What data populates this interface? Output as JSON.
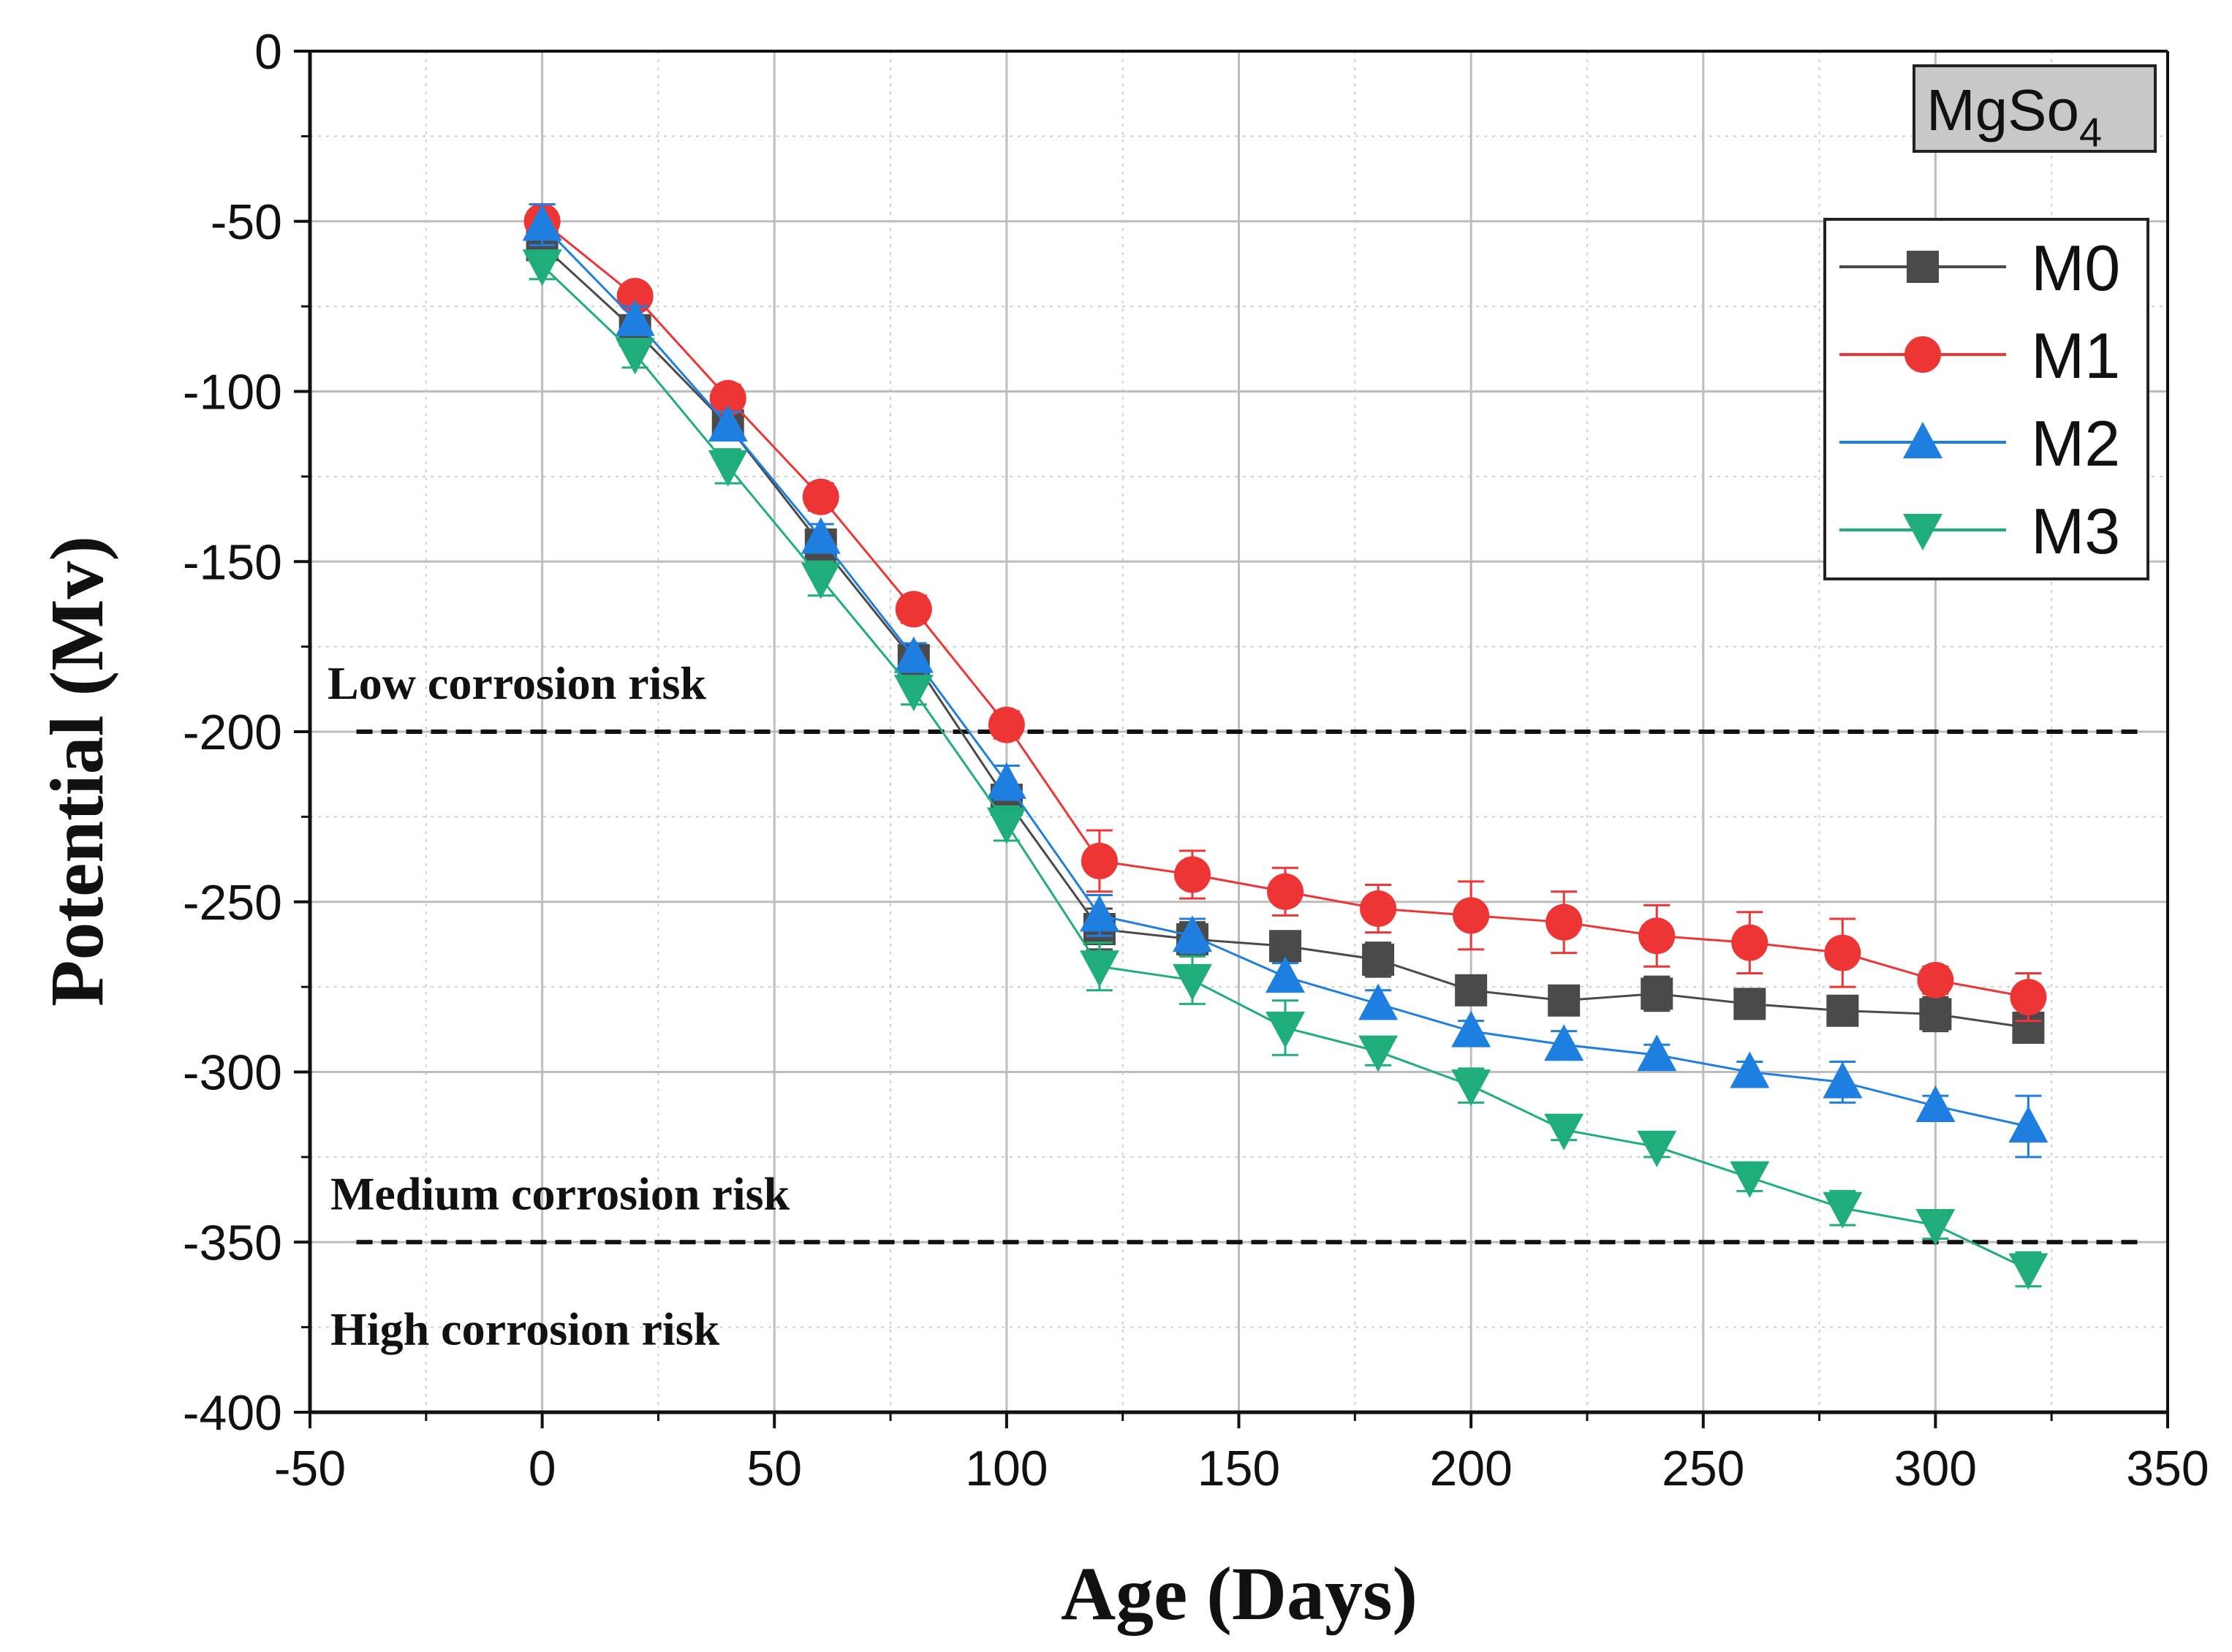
{
  "chart_data": {
    "type": "line",
    "title": "",
    "xlabel": "Age (Days)",
    "ylabel": "Potential (Mv)",
    "xlim": [
      -50,
      350
    ],
    "ylim": [
      -400,
      0
    ],
    "xticks": [
      -50,
      0,
      50,
      100,
      150,
      200,
      250,
      300,
      350
    ],
    "yticks": [
      0,
      -50,
      -100,
      -150,
      -200,
      -250,
      -300,
      -350,
      -400
    ],
    "grid": true,
    "legend_position": "top-right",
    "tag": {
      "base": "MgSo",
      "subscript": "4"
    },
    "x": [
      0,
      20,
      40,
      60,
      80,
      100,
      120,
      140,
      160,
      180,
      200,
      220,
      240,
      260,
      280,
      300,
      320
    ],
    "series": [
      {
        "name": "M0",
        "color": "#4a4a4a",
        "marker": "square",
        "values": [
          -57,
          -82,
          -110,
          -145,
          -179,
          -220,
          -258,
          -261,
          -263,
          -267,
          -276,
          -279,
          -277,
          -280,
          -282,
          -283,
          -287
        ],
        "errors": [
          4,
          3,
          4,
          4,
          4,
          4,
          6,
          5,
          4,
          5,
          4,
          4,
          5,
          3,
          3,
          5,
          3
        ]
      },
      {
        "name": "M1",
        "color": "#ee3535",
        "marker": "circle",
        "values": [
          -50,
          -72,
          -102,
          -131,
          -164,
          -198,
          -238,
          -242,
          -247,
          -252,
          -254,
          -256,
          -260,
          -262,
          -265,
          -273,
          -278
        ],
        "errors": [
          5,
          3,
          4,
          4,
          4,
          4,
          9,
          7,
          7,
          7,
          10,
          9,
          9,
          9,
          10,
          4,
          7
        ]
      },
      {
        "name": "M2",
        "color": "#1e7fe0",
        "marker": "triangle-up",
        "values": [
          -51,
          -79,
          -110,
          -143,
          -178,
          -215,
          -254,
          -260,
          -272,
          -280,
          -288,
          -292,
          -295,
          -300,
          -303,
          -310,
          -316
        ],
        "errors": [
          6,
          4,
          4,
          4,
          4,
          5,
          6,
          5,
          4,
          4,
          3,
          4,
          3,
          3,
          6,
          3,
          9
        ]
      },
      {
        "name": "M3",
        "color": "#1fae7a",
        "marker": "triangle-down",
        "values": [
          -63,
          -89,
          -122,
          -155,
          -188,
          -227,
          -269,
          -273,
          -287,
          -294,
          -304,
          -317,
          -322,
          -331,
          -340,
          -345,
          -358
        ],
        "errors": [
          4,
          4,
          5,
          5,
          4,
          5,
          7,
          7,
          8,
          4,
          5,
          3,
          3,
          4,
          5,
          4,
          5
        ]
      }
    ],
    "annotations": [
      {
        "text": "Low corrosion risk",
        "threshold": -200
      },
      {
        "text": "Medium corrosion risk",
        "threshold": -350
      },
      {
        "text": "High corrosion risk",
        "threshold": null
      }
    ]
  }
}
